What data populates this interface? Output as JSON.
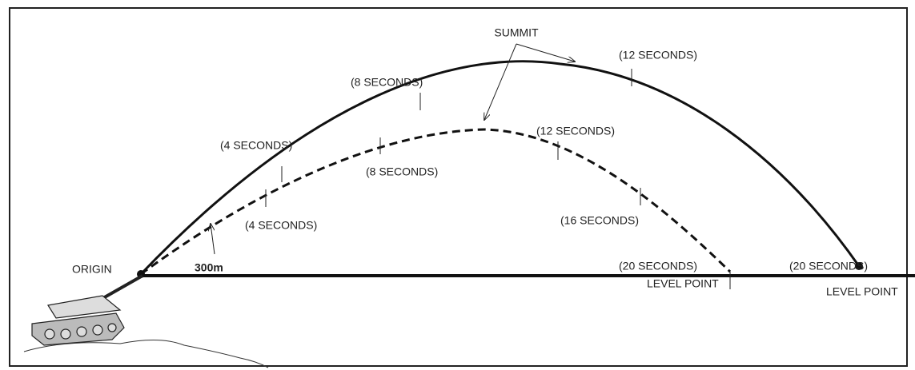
{
  "labels": {
    "summit": "SUMMIT",
    "origin": "ORIGIN",
    "range_marker": "300m"
  },
  "high_trajectory": {
    "time_labels": [
      "(4 SECONDS)",
      "(8 SECONDS)",
      "(12 SECONDS)",
      "(20 SECONDS)"
    ],
    "level_point": "LEVEL POINT"
  },
  "low_trajectory": {
    "time_labels": [
      "(4 SECONDS)",
      "(8 SECONDS)",
      "(12 SECONDS)",
      "(16 SECONDS)",
      "(20 SECONDS)"
    ],
    "level_point": "LEVEL POINT"
  }
}
